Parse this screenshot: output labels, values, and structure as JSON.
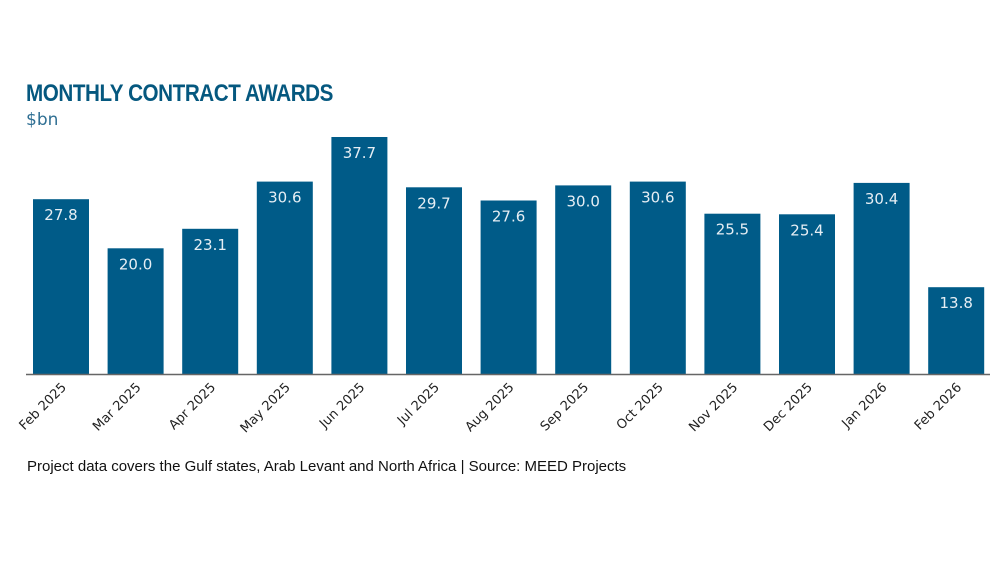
{
  "header": {
    "title": "MONTHLY CONTRACT AWARDS",
    "unit": "$bn"
  },
  "footnote": "Project data covers the Gulf states, Arab Levant and North Africa | Source: MEED Projects",
  "colors": {
    "bar": "#005b88",
    "title": "#05587f",
    "bar_label": "#e6eef4",
    "axis": "#666666"
  },
  "chart_data": {
    "type": "bar",
    "title": "MONTHLY CONTRACT AWARDS",
    "subtitle": "$bn",
    "xlabel": "",
    "ylabel": "$bn",
    "categories": [
      "Feb 2025",
      "Mar 2025",
      "Apr 2025",
      "May 2025",
      "Jun 2025",
      "Jul 2025",
      "Aug 2025",
      "Sep 2025",
      "Oct 2025",
      "Nov 2025",
      "Dec 2025",
      "Jan 2026",
      "Feb 2026"
    ],
    "values": [
      27.8,
      20.0,
      23.1,
      30.6,
      37.7,
      29.7,
      27.6,
      30.0,
      30.6,
      25.5,
      25.4,
      30.4,
      13.8
    ],
    "data_labels": [
      "27.8",
      "20.0",
      "23.1",
      "30.6",
      "37.7",
      "29.7",
      "27.6",
      "30.0",
      "30.6",
      "25.5",
      "25.4",
      "30.4",
      "13.8"
    ],
    "ylim": [
      0,
      37.7
    ],
    "grid": false,
    "legend": "none",
    "x_tick_rotation": "diagonal",
    "source": "MEED Projects"
  }
}
